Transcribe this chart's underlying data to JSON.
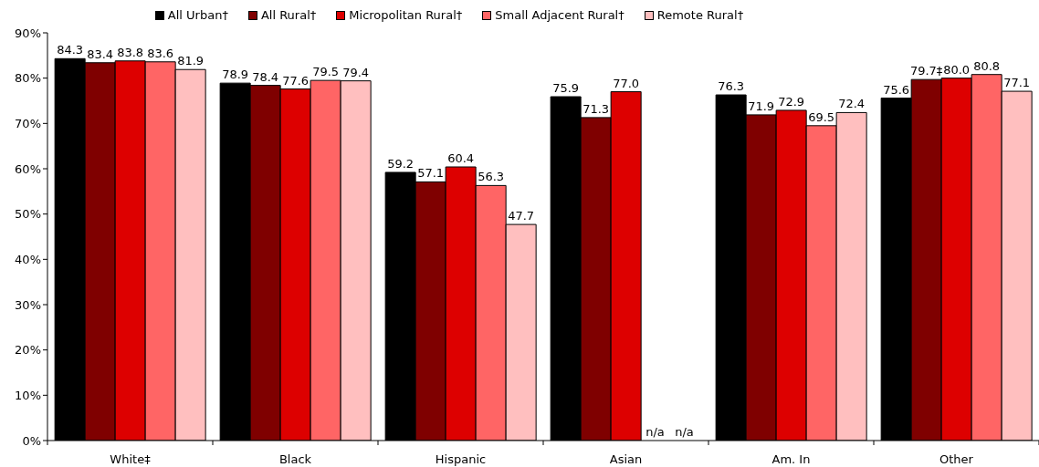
{
  "chart_data": {
    "type": "bar",
    "categories": [
      "White‡",
      "Black",
      "Hispanic",
      "Asian",
      "Am. In",
      "Other"
    ],
    "series": [
      {
        "name": "All Urban†",
        "color": "#000000",
        "values": [
          84.3,
          78.9,
          59.2,
          75.9,
          76.3,
          75.6
        ],
        "value_labels": [
          "84.3",
          "78.9",
          "59.2",
          "75.9",
          "76.3",
          "75.6"
        ]
      },
      {
        "name": "All Rural†",
        "color": "#7f0000",
        "values": [
          83.4,
          78.4,
          57.1,
          71.3,
          71.9,
          79.7
        ],
        "value_labels": [
          "83.4",
          "78.4",
          "57.1",
          "71.3",
          "71.9",
          "79.7‡"
        ]
      },
      {
        "name": "Micropolitan Rural†",
        "color": "#dd0000",
        "values": [
          83.8,
          77.6,
          60.4,
          77.0,
          72.9,
          80.0
        ],
        "value_labels": [
          "83.8",
          "77.6",
          "60.4",
          "77.0",
          "72.9",
          "80.0"
        ]
      },
      {
        "name": "Small Adjacent Rural†",
        "color": "#ff6565",
        "values": [
          83.6,
          79.5,
          56.3,
          null,
          69.5,
          80.8
        ],
        "value_labels": [
          "83.6",
          "79.5",
          "56.3",
          "n/a",
          "69.5",
          "80.8"
        ]
      },
      {
        "name": "Remote Rural†",
        "color": "#ffbfbf",
        "values": [
          81.9,
          79.4,
          47.7,
          null,
          72.4,
          77.1
        ],
        "value_labels": [
          "81.9",
          "79.4",
          "47.7",
          "n/a",
          "72.4",
          "77.1"
        ]
      }
    ],
    "ylim": [
      0,
      90
    ],
    "yticks": [
      {
        "value": 0,
        "label": "0%"
      },
      {
        "value": 10,
        "label": "10%"
      },
      {
        "value": 20,
        "label": "20%"
      },
      {
        "value": 30,
        "label": "30%"
      },
      {
        "value": 40,
        "label": "40%"
      },
      {
        "value": 50,
        "label": "50%"
      },
      {
        "value": 60,
        "label": "60%"
      },
      {
        "value": 70,
        "label": "70%"
      },
      {
        "value": 80,
        "label": "80%"
      },
      {
        "value": 90,
        "label": "90%"
      }
    ],
    "legend": "top",
    "grid": false
  }
}
